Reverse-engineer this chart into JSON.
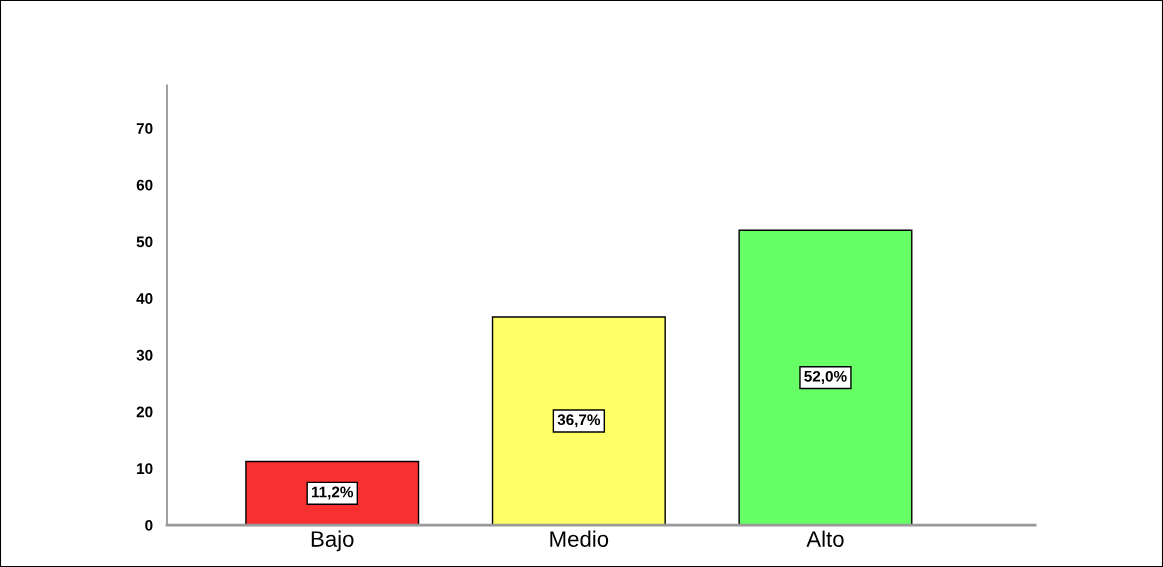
{
  "chart_data": {
    "type": "bar",
    "categories": [
      "Bajo",
      "Medio",
      "Alto"
    ],
    "values": [
      11.2,
      36.7,
      52.0
    ],
    "colors": [
      "#f83030",
      "#ffff66",
      "#66ff66"
    ],
    "value_labels": [
      "11,2%",
      "36,7%",
      "52,0%"
    ],
    "ylim": [
      0,
      77.6
    ],
    "yticks": [
      0,
      10,
      20,
      30,
      40,
      50,
      60,
      70
    ],
    "grid": false,
    "legend": false
  }
}
